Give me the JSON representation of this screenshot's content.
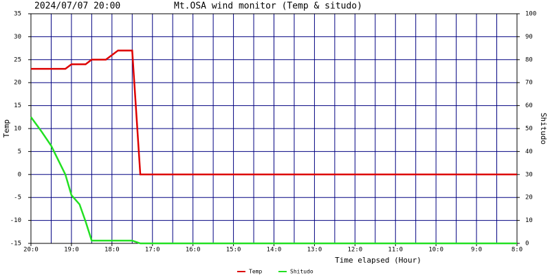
{
  "chart_data": {
    "type": "line",
    "title": "Mt.OSA wind monitor (Temp & situdo)",
    "subtitle": "2024/07/07 20:00",
    "xlabel": "Time elapsed (Hour)",
    "ylabel": "Temp",
    "y2label": "Shitudo",
    "xlim": [
      0,
      12
    ],
    "xticks": [
      {
        "value": 0,
        "label": "20:0"
      },
      {
        "value": 1,
        "label": "19:0"
      },
      {
        "value": 2,
        "label": "18:0"
      },
      {
        "value": 3,
        "label": "17:0"
      },
      {
        "value": 4,
        "label": "16:0"
      },
      {
        "value": 5,
        "label": "15:0"
      },
      {
        "value": 6,
        "label": "14:0"
      },
      {
        "value": 7,
        "label": "13:0"
      },
      {
        "value": 8,
        "label": "12:0"
      },
      {
        "value": 9,
        "label": "11:0"
      },
      {
        "value": 10,
        "label": "10:0"
      },
      {
        "value": 11,
        "label": "9:0"
      },
      {
        "value": 12,
        "label": "8:0"
      }
    ],
    "ylim": [
      -15,
      35
    ],
    "yticks": [
      -15,
      -10,
      -5,
      0,
      5,
      10,
      15,
      20,
      25,
      30,
      35
    ],
    "y2lim": [
      0,
      100
    ],
    "y2ticks": [
      0,
      10,
      20,
      30,
      40,
      50,
      60,
      70,
      80,
      90,
      100
    ],
    "grid": true,
    "series": [
      {
        "name": "Temp",
        "color": "#dd0000",
        "axis": "y",
        "x": [
          0,
          0.85,
          1.0,
          1.35,
          1.5,
          1.85,
          2.0,
          2.15,
          2.5,
          2.7,
          12
        ],
        "values": [
          23,
          23,
          24,
          24,
          25,
          25,
          26,
          27,
          27,
          0,
          0
        ]
      },
      {
        "name": "Shitudo",
        "color": "#22e022",
        "axis": "y2",
        "x": [
          0,
          0.25,
          0.5,
          0.85,
          1.0,
          1.2,
          1.35,
          1.5,
          2.5,
          2.7,
          12
        ],
        "values": [
          55,
          49,
          42.5,
          30,
          21,
          17,
          9.5,
          1.2,
          1.2,
          0,
          0
        ]
      }
    ]
  }
}
